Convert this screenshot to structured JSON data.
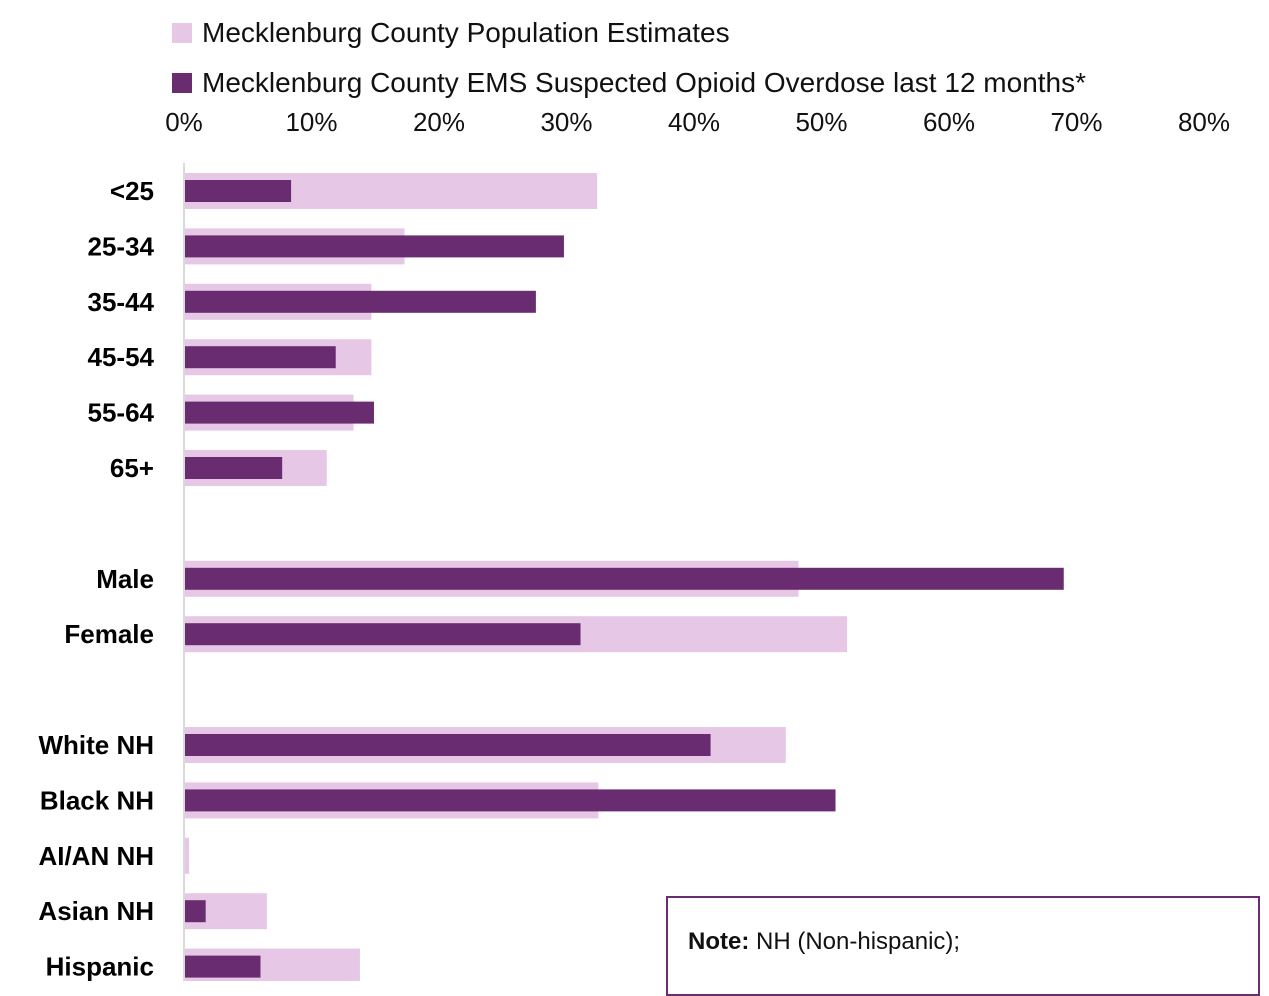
{
  "legend": {
    "population_label": "Mecklenburg County Population Estimates",
    "ems_label": "Mecklenburg County EMS Suspected Opioid Overdose last 12 months*"
  },
  "colors": {
    "population": "#e6c8e6",
    "ems": "#6a2c70",
    "axis": "#d9d9d9",
    "note_border": "#6a2c70"
  },
  "note": {
    "label": "Note:",
    "text": "NH (Non-hispanic);"
  },
  "chart_data": {
    "type": "bar",
    "orientation": "horizontal",
    "xlim": [
      0,
      80
    ],
    "x_ticks": [
      "0%",
      "10%",
      "20%",
      "30%",
      "40%",
      "50%",
      "60%",
      "70%",
      "80%"
    ],
    "grid": false,
    "legend_position": "top",
    "categories": [
      "<25",
      "25-34",
      "35-44",
      "45-54",
      "55-64",
      "65+",
      "Male",
      "Female",
      "White NH",
      "Black NH",
      "AI/AN NH",
      "Asian NH",
      "Hispanic"
    ],
    "category_gap_after": [
      "65+",
      "Female"
    ],
    "series": [
      {
        "name": "Mecklenburg County Population Estimates",
        "values": [
          32.4,
          17.3,
          14.7,
          14.7,
          13.3,
          11.2,
          48.2,
          52.0,
          47.2,
          32.5,
          0.4,
          6.5,
          13.8
        ]
      },
      {
        "name": "Mecklenburg County EMS Suspected Opioid Overdose last 12 months*",
        "values": [
          8.4,
          29.8,
          27.6,
          11.9,
          14.9,
          7.7,
          69.0,
          31.1,
          41.3,
          51.1,
          0.0,
          1.7,
          6.0
        ]
      }
    ]
  }
}
